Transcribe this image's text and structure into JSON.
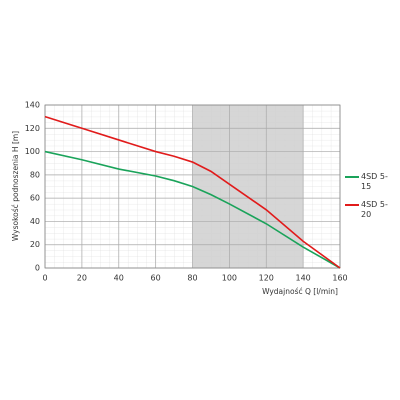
{
  "chart_data": {
    "type": "line",
    "xlabel": "Wydajność Q [l/min]",
    "ylabel": "Wysokość podnoszenia H [m]",
    "x": [
      0,
      20,
      40,
      60,
      70,
      80,
      90,
      100,
      120,
      140,
      160
    ],
    "series": [
      {
        "name": "4SD 5-15",
        "color": "#1aa35a",
        "values": [
          100,
          93,
          85,
          79,
          75,
          70,
          63,
          55,
          38,
          18,
          0
        ]
      },
      {
        "name": "4SD 5-20",
        "color": "#e11b1b",
        "values": [
          130,
          120,
          110,
          100,
          96,
          91,
          83,
          72,
          50,
          23,
          0
        ]
      }
    ],
    "highlight_xlim": [
      80,
      140
    ],
    "xlim": [
      0,
      160
    ],
    "xticks": [
      0,
      20,
      40,
      60,
      80,
      100,
      120,
      140,
      160
    ],
    "ylim": [
      0,
      140
    ],
    "yticks": [
      0,
      20,
      40,
      60,
      80,
      100,
      120,
      140
    ],
    "grid": true
  }
}
